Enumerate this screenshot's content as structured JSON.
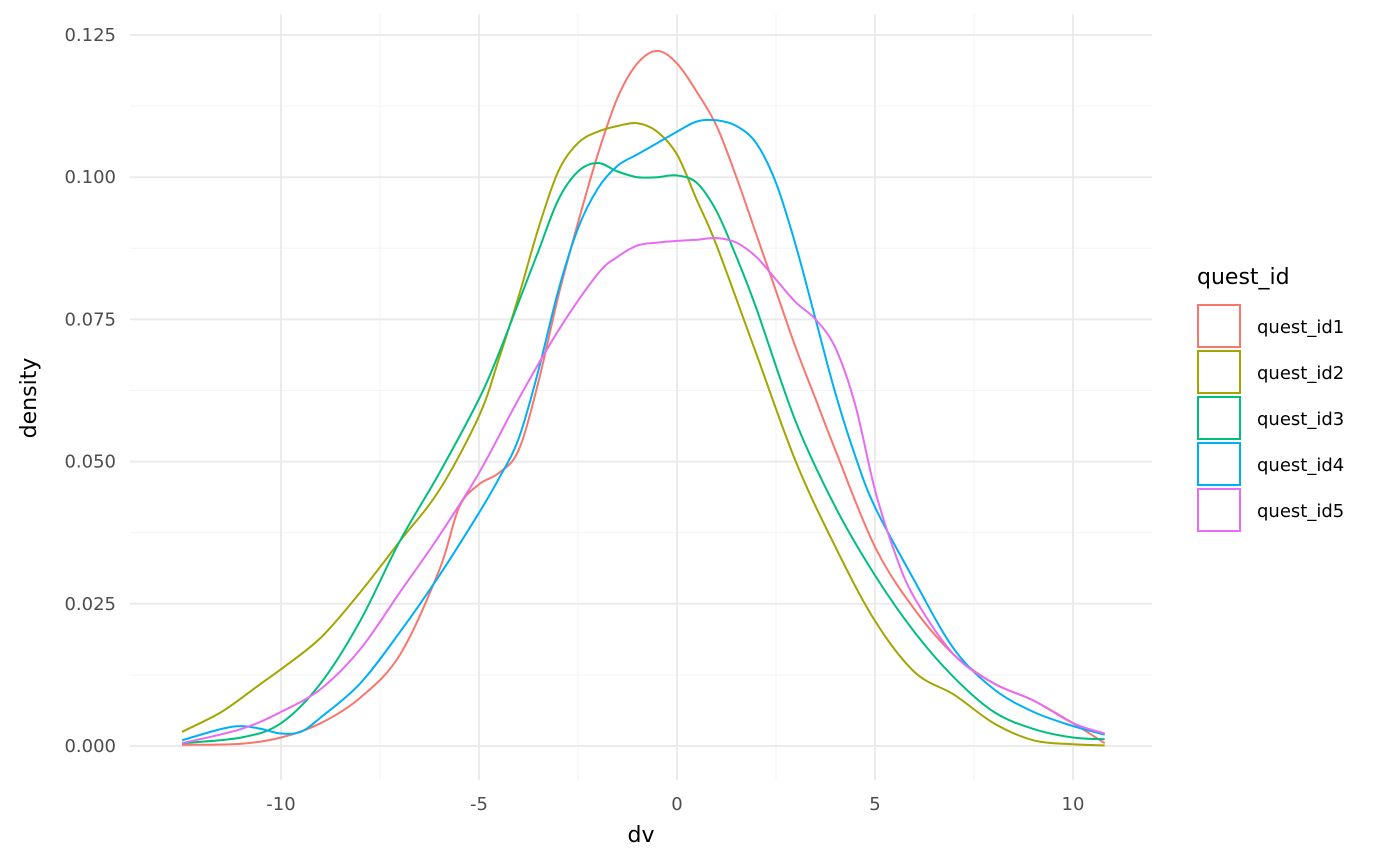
{
  "chart_data": {
    "type": "line",
    "xlabel": "dv",
    "ylabel": "density",
    "xlim": [
      -12.5,
      10.8
    ],
    "ylim": [
      0,
      0.125
    ],
    "x_ticks": [
      -10,
      -5,
      0,
      5,
      10
    ],
    "x_tick_labels": [
      "-10",
      "-5",
      "0",
      "5",
      "10"
    ],
    "y_ticks": [
      0,
      0.025,
      0.05,
      0.075,
      0.1,
      0.125
    ],
    "y_tick_labels": [
      "0.000",
      "0.025",
      "0.050",
      "0.075",
      "0.100",
      "0.125"
    ],
    "grid": true,
    "legend": {
      "title": "quest_id",
      "placement": "right"
    },
    "series": [
      {
        "name": "quest_id1",
        "color": "#F8766D",
        "x": [
          -12.5,
          -11,
          -10,
          -9,
          -8,
          -7,
          -6,
          -5.5,
          -5,
          -4.5,
          -4,
          -3.5,
          -3,
          -2.5,
          -2,
          -1.5,
          -1,
          -0.5,
          0,
          0.5,
          1,
          1.5,
          2,
          2.5,
          3,
          3.5,
          4,
          5,
          6,
          7,
          8,
          9,
          10,
          10.8
        ],
        "y": [
          0.0002,
          0.0004,
          0.0015,
          0.004,
          0.0085,
          0.016,
          0.031,
          0.042,
          0.046,
          0.048,
          0.052,
          0.064,
          0.079,
          0.092,
          0.104,
          0.114,
          0.12,
          0.1222,
          0.12,
          0.115,
          0.109,
          0.1,
          0.09,
          0.08,
          0.07,
          0.061,
          0.052,
          0.035,
          0.024,
          0.016,
          0.011,
          0.008,
          0.004,
          0.0005
        ]
      },
      {
        "name": "quest_id2",
        "color": "#A3A500",
        "x": [
          -12.5,
          -11.5,
          -10.5,
          -10,
          -9,
          -8,
          -7,
          -6,
          -5,
          -4.5,
          -4,
          -3.5,
          -3,
          -2.5,
          -2,
          -1.5,
          -1,
          -0.5,
          0,
          0.5,
          1,
          2,
          3,
          4,
          5,
          6,
          7,
          8,
          9,
          10,
          10.8
        ],
        "y": [
          0.0025,
          0.006,
          0.011,
          0.0135,
          0.019,
          0.027,
          0.036,
          0.045,
          0.058,
          0.068,
          0.079,
          0.091,
          0.101,
          0.106,
          0.108,
          0.109,
          0.1095,
          0.108,
          0.104,
          0.096,
          0.088,
          0.069,
          0.05,
          0.035,
          0.022,
          0.013,
          0.009,
          0.004,
          0.001,
          0.0003,
          0.0001
        ]
      },
      {
        "name": "quest_id3",
        "color": "#00BF7D",
        "x": [
          -12.5,
          -11,
          -10,
          -9,
          -8,
          -7,
          -6,
          -5,
          -4.5,
          -4,
          -3.5,
          -3,
          -2.5,
          -2,
          -1.5,
          -1,
          -0.5,
          0,
          0.5,
          1,
          1.5,
          2,
          3,
          4,
          5,
          6,
          7,
          8,
          9,
          10,
          10.8
        ],
        "y": [
          0.0005,
          0.0015,
          0.004,
          0.011,
          0.022,
          0.036,
          0.048,
          0.061,
          0.069,
          0.078,
          0.087,
          0.096,
          0.101,
          0.1025,
          0.101,
          0.1,
          0.1,
          0.1003,
          0.099,
          0.094,
          0.086,
          0.077,
          0.057,
          0.042,
          0.03,
          0.02,
          0.012,
          0.006,
          0.003,
          0.0015,
          0.0012
        ]
      },
      {
        "name": "quest_id4",
        "color": "#00B0F6",
        "x": [
          -12.5,
          -11.5,
          -11,
          -10.5,
          -10,
          -9.5,
          -9,
          -8,
          -7,
          -6,
          -5,
          -4.5,
          -4,
          -3.5,
          -3,
          -2.5,
          -2,
          -1.5,
          -1,
          -0.5,
          0,
          0.5,
          1,
          1.5,
          2,
          2.5,
          3,
          3.5,
          4,
          4.5,
          5,
          6,
          7,
          8,
          9,
          10,
          10.8
        ],
        "y": [
          0.001,
          0.003,
          0.0035,
          0.003,
          0.0022,
          0.0025,
          0.005,
          0.011,
          0.02,
          0.03,
          0.041,
          0.047,
          0.054,
          0.066,
          0.08,
          0.091,
          0.098,
          0.102,
          0.104,
          0.106,
          0.108,
          0.1098,
          0.11,
          0.109,
          0.106,
          0.099,
          0.088,
          0.075,
          0.062,
          0.051,
          0.042,
          0.029,
          0.017,
          0.01,
          0.006,
          0.0035,
          0.002
        ]
      },
      {
        "name": "quest_id5",
        "color": "#E76BF3",
        "x": [
          -12.5,
          -11,
          -10,
          -9,
          -8,
          -7,
          -6,
          -5,
          -4,
          -3,
          -2,
          -1.5,
          -1,
          -0.5,
          0,
          0.5,
          1,
          1.5,
          2,
          2.5,
          3,
          3.5,
          4,
          4.5,
          5,
          5.5,
          6,
          7,
          8,
          9,
          10,
          10.8
        ],
        "y": [
          0.0005,
          0.003,
          0.006,
          0.01,
          0.017,
          0.027,
          0.037,
          0.048,
          0.061,
          0.073,
          0.083,
          0.086,
          0.088,
          0.0885,
          0.0888,
          0.089,
          0.0893,
          0.0885,
          0.086,
          0.082,
          0.078,
          0.075,
          0.07,
          0.06,
          0.045,
          0.034,
          0.026,
          0.016,
          0.011,
          0.008,
          0.004,
          0.0022
        ]
      }
    ]
  }
}
